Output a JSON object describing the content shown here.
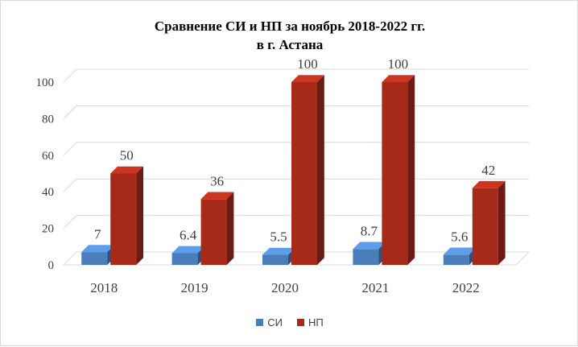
{
  "chart_data": {
    "type": "bar",
    "title_line1": "Сравнение СИ и НП за ноябрь 2018-2022 гг.",
    "title_line2": "в г. Астана",
    "categories": [
      "2018",
      "2019",
      "2020",
      "2021",
      "2022"
    ],
    "series": [
      {
        "name": "СИ",
        "values": [
          7,
          6.4,
          5.5,
          8.7,
          5.6
        ],
        "color": "#4a7ebb"
      },
      {
        "name": "НП",
        "values": [
          50,
          36,
          100,
          100,
          42
        ],
        "color": "#a52a1a"
      }
    ],
    "yticks": [
      "0",
      "20",
      "40",
      "60",
      "80",
      "100"
    ],
    "ylim": [
      0,
      100
    ],
    "grid": true,
    "legend_position": "bottom",
    "style": "3d-clustered-bar"
  }
}
